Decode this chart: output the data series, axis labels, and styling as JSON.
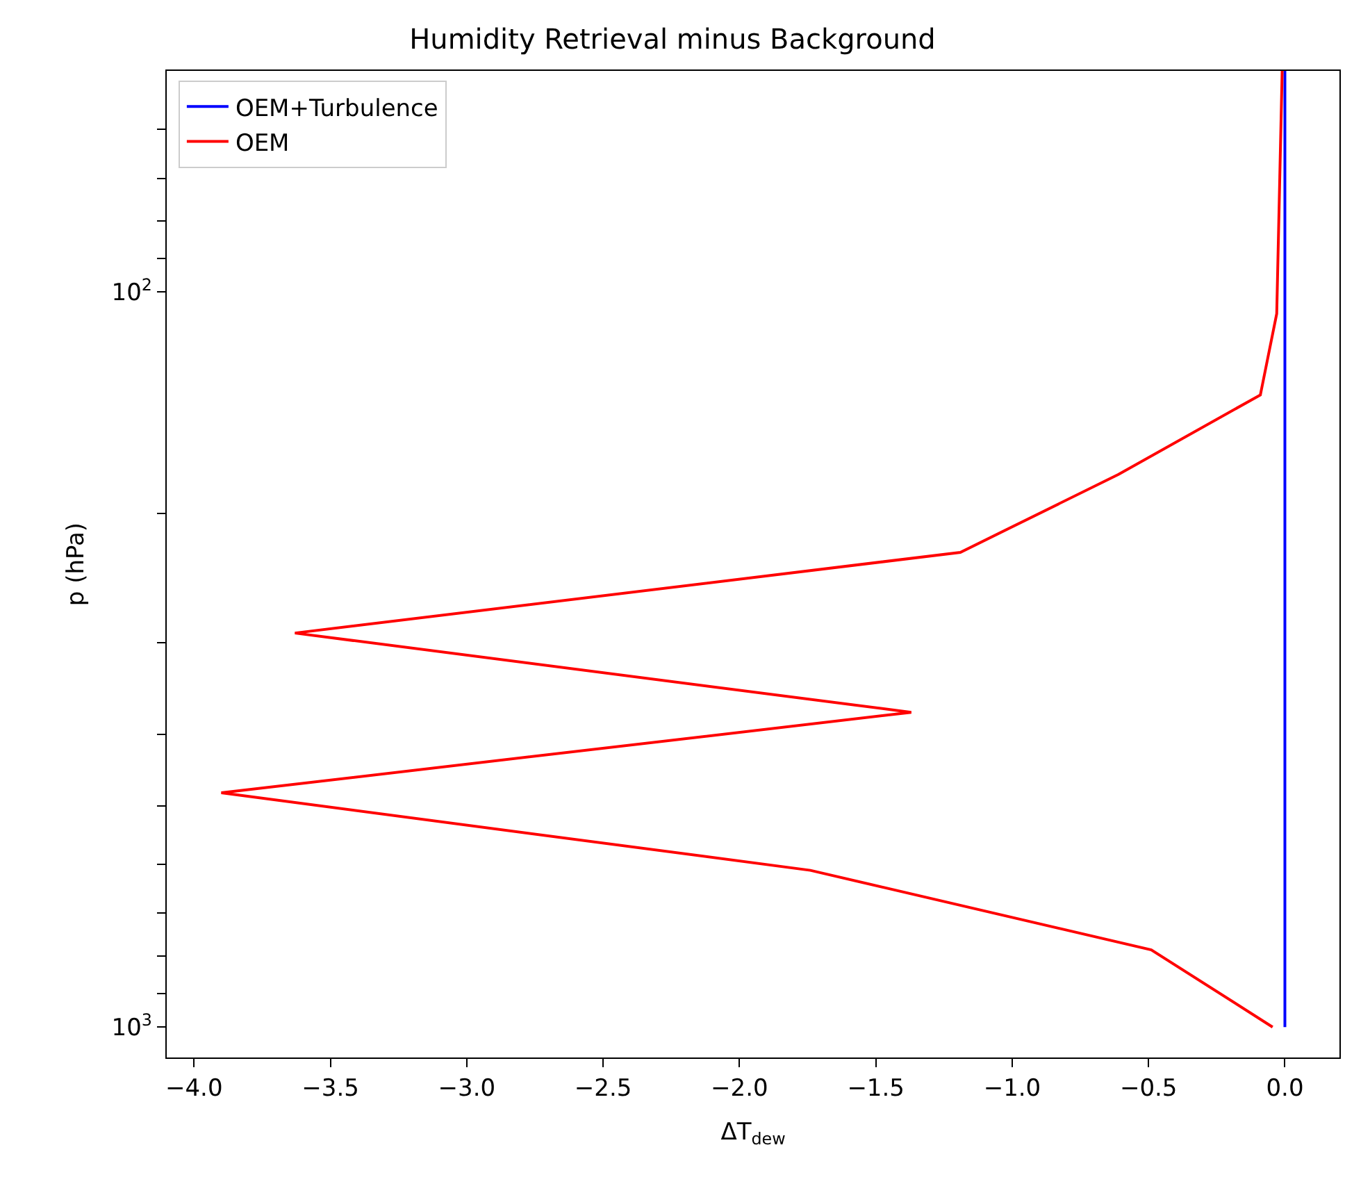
{
  "chart_data": {
    "type": "line",
    "title": "Humidity Retrieval minus Background",
    "xlabel": "ΔT$_{dew}$",
    "ylabel": "p (hPa)",
    "log": "y",
    "legend": "top left",
    "line_style": "solid",
    "marker": "none",
    "xlim": [
      -4.1,
      0.2
    ],
    "xticks": [
      {
        "value": -4.0,
        "label": "−4.0"
      },
      {
        "value": -3.5,
        "label": "−3.5"
      },
      {
        "value": -3.0,
        "label": "−3.0"
      },
      {
        "value": -2.5,
        "label": "−2.5"
      },
      {
        "value": -2.0,
        "label": "−2.0"
      },
      {
        "value": -1.5,
        "label": "−1.5"
      },
      {
        "value": -1.0,
        "label": "−1.0"
      },
      {
        "value": -0.5,
        "label": "−0.5"
      },
      {
        "value": 0.0,
        "label": "0.0"
      }
    ],
    "ylim": [
      1100,
      50
    ],
    "yticks": [
      {
        "value": 60,
        "label": null
      },
      {
        "value": 70,
        "label": null
      },
      {
        "value": 80,
        "label": null
      },
      {
        "value": 90,
        "label": null
      },
      {
        "value": 100,
        "label": "10$^{2}$"
      },
      {
        "value": 200,
        "label": null
      },
      {
        "value": 300,
        "label": null
      },
      {
        "value": 400,
        "label": null
      },
      {
        "value": 500,
        "label": null
      },
      {
        "value": 600,
        "label": null
      },
      {
        "value": 700,
        "label": null
      },
      {
        "value": 800,
        "label": null
      },
      {
        "value": 900,
        "label": null
      },
      {
        "value": 1000,
        "label": "10$^{3}$"
      }
    ],
    "series": [
      {
        "name": "OEM+Turbulence",
        "color": "#0000ff",
        "x": [
          0.0,
          0.0
        ],
        "values": [
          1000,
          50
        ]
      },
      {
        "name": "OEM",
        "color": "#ff0000",
        "x": [
          -0.045,
          -0.49,
          -1.74,
          -3.9,
          -1.37,
          -3.63,
          -1.19,
          -0.61,
          -0.09,
          -0.03,
          -0.01
        ],
        "values": [
          1000,
          785,
          612,
          480,
          373,
          291,
          226,
          177,
          138,
          107,
          50
        ]
      }
    ]
  }
}
